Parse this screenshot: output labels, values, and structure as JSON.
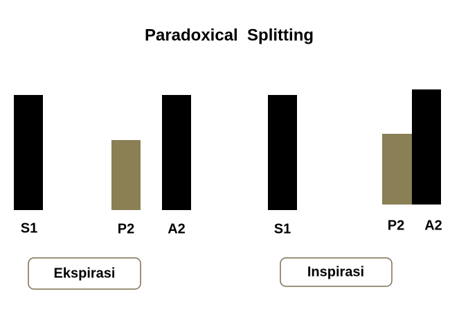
{
  "title": "Paradoxical  Splitting",
  "panels": [
    {
      "labels": [
        "S1",
        "P2",
        "A2"
      ],
      "button": "Ekspirasi"
    },
    {
      "labels": [
        "S1",
        "P2",
        "A2"
      ],
      "button": "Inspirasi"
    }
  ]
}
